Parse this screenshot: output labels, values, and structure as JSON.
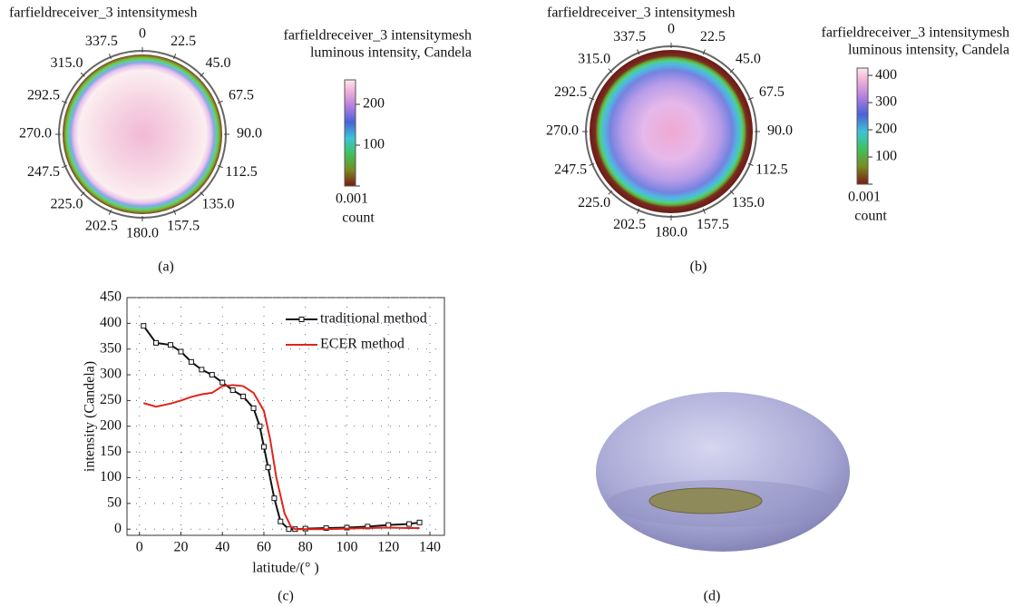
{
  "chart_data": [
    {
      "type": "polar-map",
      "caption": "(a)",
      "title": "farfieldreceiver_3 intensitymesh",
      "colorbar_title": [
        "farfieldreceiver_3 intensitymesh",
        "luminous intensity, Candela"
      ],
      "colorbar_label": "count",
      "angle_ticks": [
        0,
        22.5,
        {
          "value": 45,
          "label": "45.0"
        },
        67.5,
        {
          "value": 90,
          "label": "90.0"
        },
        112.5,
        {
          "value": 135,
          "label": "135.0"
        },
        157.5,
        {
          "value": 180,
          "label": "180.0"
        },
        202.5,
        {
          "value": 225,
          "label": "225.0"
        },
        247.5,
        {
          "value": 270,
          "label": "270.0"
        },
        292.5,
        {
          "value": 315,
          "label": "315.0"
        },
        337.5
      ],
      "colorbar_lim": [
        0.001,
        260
      ],
      "colorbar_ticks": [
        0.001,
        100,
        200
      ]
    },
    {
      "type": "polar-map",
      "caption": "(b)",
      "title": "farfieldreceiver_3 intensitymesh",
      "colorbar_title": [
        "farfieldreceiver_3 intensitymesh",
        "luminous intensity, Candela"
      ],
      "colorbar_label": "count",
      "angle_ticks": [
        0,
        22.5,
        {
          "value": 45,
          "label": "45.0"
        },
        67.5,
        {
          "value": 90,
          "label": "90.0"
        },
        112.5,
        {
          "value": 135,
          "label": "135.0"
        },
        157.5,
        {
          "value": 180,
          "label": "180.0"
        },
        202.5,
        {
          "value": 225,
          "label": "225.0"
        },
        247.5,
        {
          "value": 270,
          "label": "270.0"
        },
        292.5,
        {
          "value": 315,
          "label": "315.0"
        },
        337.5
      ],
      "colorbar_lim": [
        0.001,
        427
      ],
      "colorbar_ticks": [
        0.001,
        100,
        200,
        300,
        400
      ]
    },
    {
      "type": "line",
      "caption": "(c)",
      "x_label": "latitude/(° )",
      "y_label": "intensity (Candela)",
      "xlim": [
        -6,
        147
      ],
      "xticks": [
        0,
        20,
        40,
        60,
        80,
        100,
        120,
        140
      ],
      "ylim": [
        -12,
        450
      ],
      "yticks": [
        0,
        50,
        100,
        150,
        200,
        250,
        300,
        350,
        400,
        450
      ],
      "grid": true,
      "legend": "upper right",
      "series": [
        {
          "name": "traditional method",
          "color": "#111111",
          "marker": "square",
          "x": [
            2,
            8,
            15,
            20,
            25,
            30,
            35,
            40,
            45,
            50,
            55,
            58,
            60,
            62,
            65,
            68,
            72,
            75,
            80,
            90,
            100,
            110,
            120,
            130,
            135
          ],
          "values": [
            395,
            362,
            358,
            345,
            325,
            310,
            300,
            285,
            270,
            258,
            235,
            200,
            160,
            120,
            60,
            15,
            0,
            0,
            1,
            2,
            3,
            5,
            8,
            10,
            13
          ]
        },
        {
          "name": "ECER method",
          "color": "#e0241b",
          "marker": "none",
          "x": [
            2,
            8,
            15,
            20,
            25,
            30,
            35,
            40,
            45,
            50,
            55,
            60,
            63,
            66,
            70,
            73,
            75,
            80,
            90,
            100,
            110,
            120,
            130,
            135
          ],
          "values": [
            245,
            238,
            244,
            250,
            257,
            262,
            265,
            278,
            280,
            278,
            265,
            230,
            175,
            100,
            30,
            5,
            0,
            0,
            0,
            1,
            2,
            3,
            2,
            2
          ]
        }
      ]
    }
  ],
  "panel_d": {
    "caption": "(d)"
  }
}
